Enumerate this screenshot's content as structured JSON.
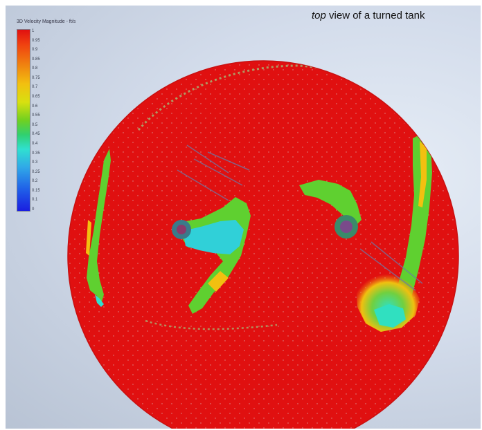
{
  "caption": {
    "emphasis": "top",
    "rest": " view of a turned tank"
  },
  "legend": {
    "title": "3D Velocity Magnitude - ft/s",
    "ticks": [
      "1",
      "0.95",
      "0.9",
      "0.85",
      "0.8",
      "0.75",
      "0.7",
      "0.65",
      "0.6",
      "0.55",
      "0.5",
      "0.45",
      "0.4",
      "0.35",
      "0.3",
      "0.25",
      "0.2",
      "0.15",
      "0.1",
      "0"
    ]
  },
  "colors": {
    "high": "#e01010",
    "orange": "#f07a10",
    "yellow": "#f2c010",
    "green": "#5fd030",
    "cyan": "#30e0d0",
    "blue": "#2060e8",
    "low": "#1a1ee0",
    "vectors": "#6a7aa8"
  }
}
